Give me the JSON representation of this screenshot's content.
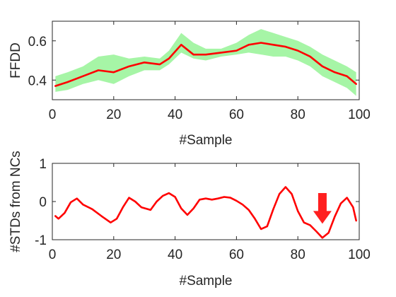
{
  "chart_data": [
    {
      "type": "line",
      "xlabel": "#Sample",
      "ylabel": "FFDD",
      "xlim": [
        0,
        100
      ],
      "ylim": [
        0.3,
        0.7
      ],
      "xticks": [
        "0",
        "20",
        "40",
        "60",
        "80",
        "100"
      ],
      "yticks": [
        "0.4",
        "0.6"
      ],
      "grid": false,
      "colors": {
        "line": "#ff0000",
        "band": "#a6f5a6"
      },
      "series": [
        {
          "type": "line",
          "x": [
            1,
            5,
            10,
            15,
            20,
            25,
            30,
            35,
            38,
            42,
            46,
            50,
            55,
            60,
            64,
            68,
            72,
            76,
            80,
            84,
            88,
            92,
            96,
            99
          ],
          "y": [
            0.37,
            0.39,
            0.42,
            0.45,
            0.44,
            0.47,
            0.49,
            0.48,
            0.51,
            0.58,
            0.53,
            0.53,
            0.54,
            0.55,
            0.58,
            0.59,
            0.58,
            0.57,
            0.55,
            0.52,
            0.47,
            0.44,
            0.42,
            0.38
          ]
        },
        {
          "type": "band",
          "x": [
            1,
            5,
            10,
            15,
            20,
            25,
            30,
            35,
            38,
            42,
            46,
            50,
            55,
            60,
            64,
            68,
            72,
            76,
            80,
            84,
            88,
            92,
            96,
            99
          ],
          "upper": [
            0.42,
            0.44,
            0.47,
            0.52,
            0.53,
            0.51,
            0.52,
            0.51,
            0.55,
            0.64,
            0.59,
            0.56,
            0.56,
            0.59,
            0.63,
            0.66,
            0.64,
            0.62,
            0.6,
            0.57,
            0.53,
            0.5,
            0.47,
            0.44
          ],
          "lower": [
            0.34,
            0.35,
            0.38,
            0.4,
            0.38,
            0.42,
            0.45,
            0.45,
            0.48,
            0.54,
            0.51,
            0.5,
            0.52,
            0.53,
            0.54,
            0.53,
            0.52,
            0.52,
            0.5,
            0.47,
            0.42,
            0.39,
            0.36,
            0.32
          ]
        }
      ]
    },
    {
      "type": "line",
      "xlabel": "#Sample",
      "ylabel": "#STDs from NCs",
      "xlim": [
        0,
        100
      ],
      "ylim": [
        -1,
        1
      ],
      "xticks": [
        "0",
        "20",
        "40",
        "60",
        "80",
        "100"
      ],
      "yticks": [
        "-1",
        "0",
        "1"
      ],
      "grid": false,
      "colors": {
        "line": "#ff0000",
        "arrow": "#ff1f1f"
      },
      "annotations": [
        {
          "type": "arrow-down",
          "x": 88
        }
      ],
      "series": [
        {
          "type": "line",
          "x": [
            1,
            2,
            4,
            6,
            8,
            10,
            13,
            16,
            19,
            21,
            23,
            25,
            27,
            29,
            32,
            34,
            36,
            38,
            40,
            42,
            44,
            46,
            48,
            50,
            52,
            54,
            56,
            58,
            60,
            62,
            64,
            66,
            68,
            70,
            72,
            74,
            76,
            78,
            80,
            82,
            84,
            86,
            88,
            90,
            92,
            94,
            96,
            98,
            99
          ],
          "y": [
            -0.38,
            -0.45,
            -0.3,
            -0.02,
            0.08,
            -0.08,
            -0.2,
            -0.38,
            -0.55,
            -0.45,
            -0.15,
            0.1,
            0.0,
            -0.15,
            -0.22,
            0.0,
            0.15,
            0.22,
            0.12,
            -0.18,
            -0.35,
            -0.18,
            0.05,
            0.08,
            0.05,
            0.08,
            0.12,
            0.1,
            0.02,
            -0.08,
            -0.22,
            -0.45,
            -0.72,
            -0.65,
            -0.2,
            0.2,
            0.38,
            0.2,
            -0.25,
            -0.55,
            -0.62,
            -0.78,
            -0.95,
            -0.82,
            -0.4,
            -0.05,
            0.1,
            -0.15,
            -0.5
          ]
        }
      ]
    }
  ]
}
